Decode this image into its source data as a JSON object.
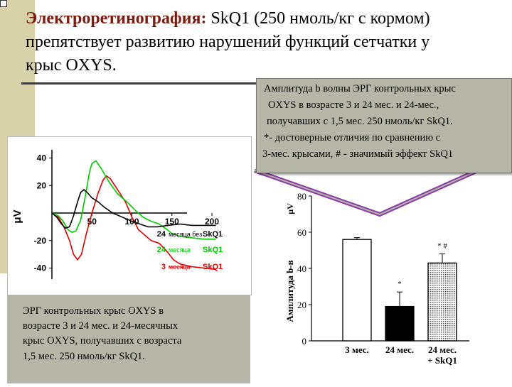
{
  "slide": {
    "title_bold": "Электроретинография:",
    "title_rest": " SkQ1 (250 нмоль/кг с  кормом)",
    "title_line2": "препятствует развитию нарушений функций сетчатки у",
    "title_line3": "крыс OXYS."
  },
  "annotation": {
    "lines": [
      "Амплитуда b волны ЭРГ контрольных крыс",
      "OXYS в возрасте   3 и 24 мес. и 24-мес.,",
      "получавших с 1,5 мес. 250 нмоль/кг  SkQ1.",
      "*- достоверные отличия по  сравнению с",
      "3-мес. крысами, # - значимый эффект SkQ1"
    ]
  },
  "caption": {
    "lines": [
      "ЭРГ контрольных крыс OXYS в",
      "возрасте 3 и 24 мес. и 24-месячных",
      "крыс OXYS, получавших с возраста",
      "1,5 мес. 250 нмоль/кг SkQ1."
    ]
  },
  "colors": {
    "accent_title": "#7a1c12",
    "panel_bg": "#b5b5a8",
    "side_bar": "#d8d2a9"
  },
  "chart_data": [
    {
      "type": "line",
      "ylabel": "μV",
      "xlim": [
        0,
        240
      ],
      "ylim": [
        -48,
        48
      ],
      "x_ticks": [
        "50",
        "100",
        "150",
        "200"
      ],
      "y_ticks": [
        "40",
        "20",
        "-20",
        "-40"
      ],
      "series": [
        {
          "color": "#e00000",
          "legend": {
            "n": "3",
            "text": "месяца",
            "suffix": "SkQ1",
            "struck": true
          },
          "points": [
            [
              0,
              0
            ],
            [
              8,
              -3
            ],
            [
              15,
              -10
            ],
            [
              22,
              -20
            ],
            [
              27,
              -30
            ],
            [
              32,
              -34
            ],
            [
              37,
              -30
            ],
            [
              43,
              -15
            ],
            [
              50,
              0
            ],
            [
              58,
              15
            ],
            [
              64,
              24
            ],
            [
              68,
              27
            ],
            [
              73,
              25
            ],
            [
              82,
              17
            ],
            [
              92,
              8
            ],
            [
              100,
              -3
            ],
            [
              108,
              -12
            ],
            [
              116,
              -16
            ],
            [
              124,
              -20
            ],
            [
              134,
              -22
            ],
            [
              144,
              -28
            ],
            [
              152,
              -34
            ],
            [
              160,
              -37
            ],
            [
              175,
              -39
            ],
            [
              190,
              -40
            ],
            [
              205,
              -41
            ]
          ]
        },
        {
          "color": "#00cc00",
          "legend": {
            "n": "24",
            "text": "месяца",
            "suffix": "SkQ1",
            "struck": false
          },
          "points": [
            [
              0,
              0
            ],
            [
              8,
              -2
            ],
            [
              14,
              -6
            ],
            [
              20,
              -12
            ],
            [
              25,
              -14
            ],
            [
              30,
              -13
            ],
            [
              36,
              -5
            ],
            [
              42,
              13
            ],
            [
              47,
              30
            ],
            [
              50,
              36
            ],
            [
              55,
              38
            ],
            [
              62,
              32
            ],
            [
              72,
              22
            ],
            [
              82,
              14
            ],
            [
              94,
              8
            ],
            [
              104,
              2
            ],
            [
              114,
              -3
            ],
            [
              124,
              -6
            ],
            [
              134,
              -8
            ],
            [
              144,
              -12
            ],
            [
              150,
              -15
            ],
            [
              160,
              -17
            ],
            [
              175,
              -18
            ],
            [
              190,
              -19
            ],
            [
              205,
              -19
            ]
          ]
        },
        {
          "color": "#000000",
          "legend": {
            "n": "24",
            "text": "месяца без",
            "suffix": "SkQ1",
            "struck": false
          },
          "points": [
            [
              0,
              0
            ],
            [
              6,
              -3
            ],
            [
              12,
              -8
            ],
            [
              17,
              -11
            ],
            [
              22,
              -10
            ],
            [
              27,
              -2
            ],
            [
              32,
              8
            ],
            [
              36,
              15
            ],
            [
              40,
              17
            ],
            [
              44,
              15
            ],
            [
              50,
              11
            ],
            [
              58,
              8
            ],
            [
              66,
              4
            ],
            [
              76,
              0
            ],
            [
              88,
              -3
            ],
            [
              100,
              -6
            ],
            [
              110,
              -8
            ],
            [
              120,
              -10
            ],
            [
              132,
              -10
            ],
            [
              145,
              -9
            ],
            [
              160,
              -8
            ],
            [
              175,
              -9
            ],
            [
              190,
              -9
            ],
            [
              205,
              -9
            ]
          ]
        }
      ]
    },
    {
      "type": "bar",
      "ylabel": "Амплитуда b-в",
      "unit_label": "μV",
      "categories": [
        "3 мес.",
        "24 мес.",
        "24 мес.\n+ SkQ1"
      ],
      "values": [
        56,
        19,
        43
      ],
      "errors": [
        1,
        8,
        5
      ],
      "annotations": [
        "",
        "*",
        "* #"
      ],
      "styles": [
        "white",
        "black",
        "dotted"
      ],
      "ylim": [
        0,
        80
      ],
      "y_ticks": [
        "0",
        "20",
        "40",
        "60",
        "80"
      ]
    }
  ]
}
